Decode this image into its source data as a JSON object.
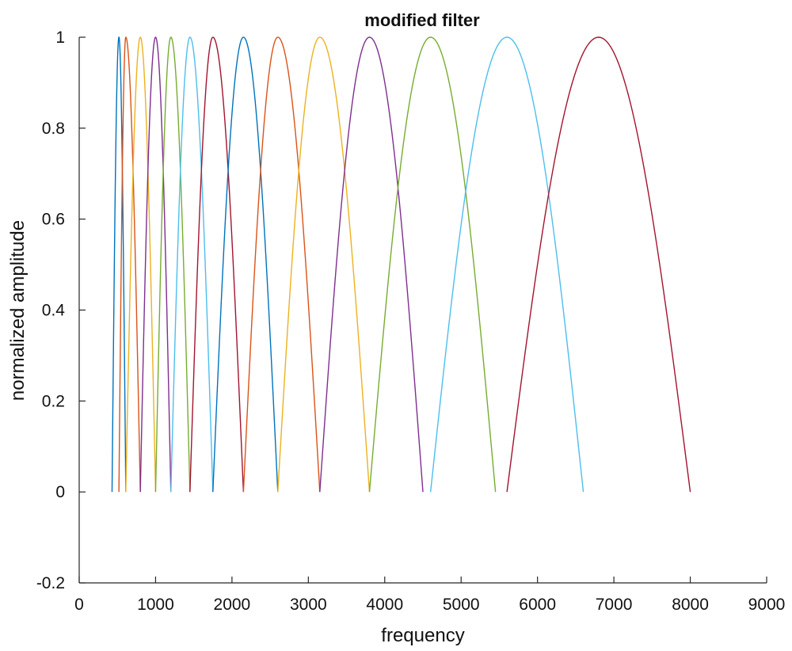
{
  "chart_data": {
    "type": "line",
    "title": "modified filter",
    "xlabel": "frequency",
    "ylabel": "normalized amplitude",
    "xlim": [
      0,
      9000
    ],
    "ylim": [
      -0.2,
      1
    ],
    "xticks": [
      0,
      1000,
      2000,
      3000,
      4000,
      5000,
      6000,
      7000,
      8000,
      9000
    ],
    "yticks": [
      -0.2,
      0,
      0.2,
      0.4,
      0.6,
      0.8,
      1
    ],
    "ytick_labels": [
      "-0.2",
      "0",
      "0.2",
      "0.4",
      "0.6",
      "0.8",
      "1"
    ],
    "grid": false,
    "series": [
      {
        "start": 430,
        "peak": 520,
        "end": 610,
        "color": "#0072BD"
      },
      {
        "start": 520,
        "peak": 610,
        "end": 800,
        "color": "#D95319"
      },
      {
        "start": 610,
        "peak": 800,
        "end": 1000,
        "color": "#EDB120"
      },
      {
        "start": 800,
        "peak": 1000,
        "end": 1200,
        "color": "#7E2F8E"
      },
      {
        "start": 1000,
        "peak": 1200,
        "end": 1450,
        "color": "#77AC30"
      },
      {
        "start": 1200,
        "peak": 1450,
        "end": 1750,
        "color": "#4DBEEE"
      },
      {
        "start": 1450,
        "peak": 1750,
        "end": 2150,
        "color": "#A2142F"
      },
      {
        "start": 1750,
        "peak": 2150,
        "end": 2600,
        "color": "#0072BD"
      },
      {
        "start": 2150,
        "peak": 2600,
        "end": 3150,
        "color": "#D95319"
      },
      {
        "start": 2600,
        "peak": 3150,
        "end": 3800,
        "color": "#EDB120"
      },
      {
        "start": 3150,
        "peak": 3800,
        "end": 4500,
        "color": "#7E2F8E"
      },
      {
        "start": 3800,
        "peak": 4600,
        "end": 5450,
        "color": "#77AC30"
      },
      {
        "start": 4600,
        "peak": 5600,
        "end": 6600,
        "color": "#4DBEEE"
      },
      {
        "start": 5600,
        "peak": 6800,
        "end": 8000,
        "color": "#A2142F"
      }
    ]
  }
}
